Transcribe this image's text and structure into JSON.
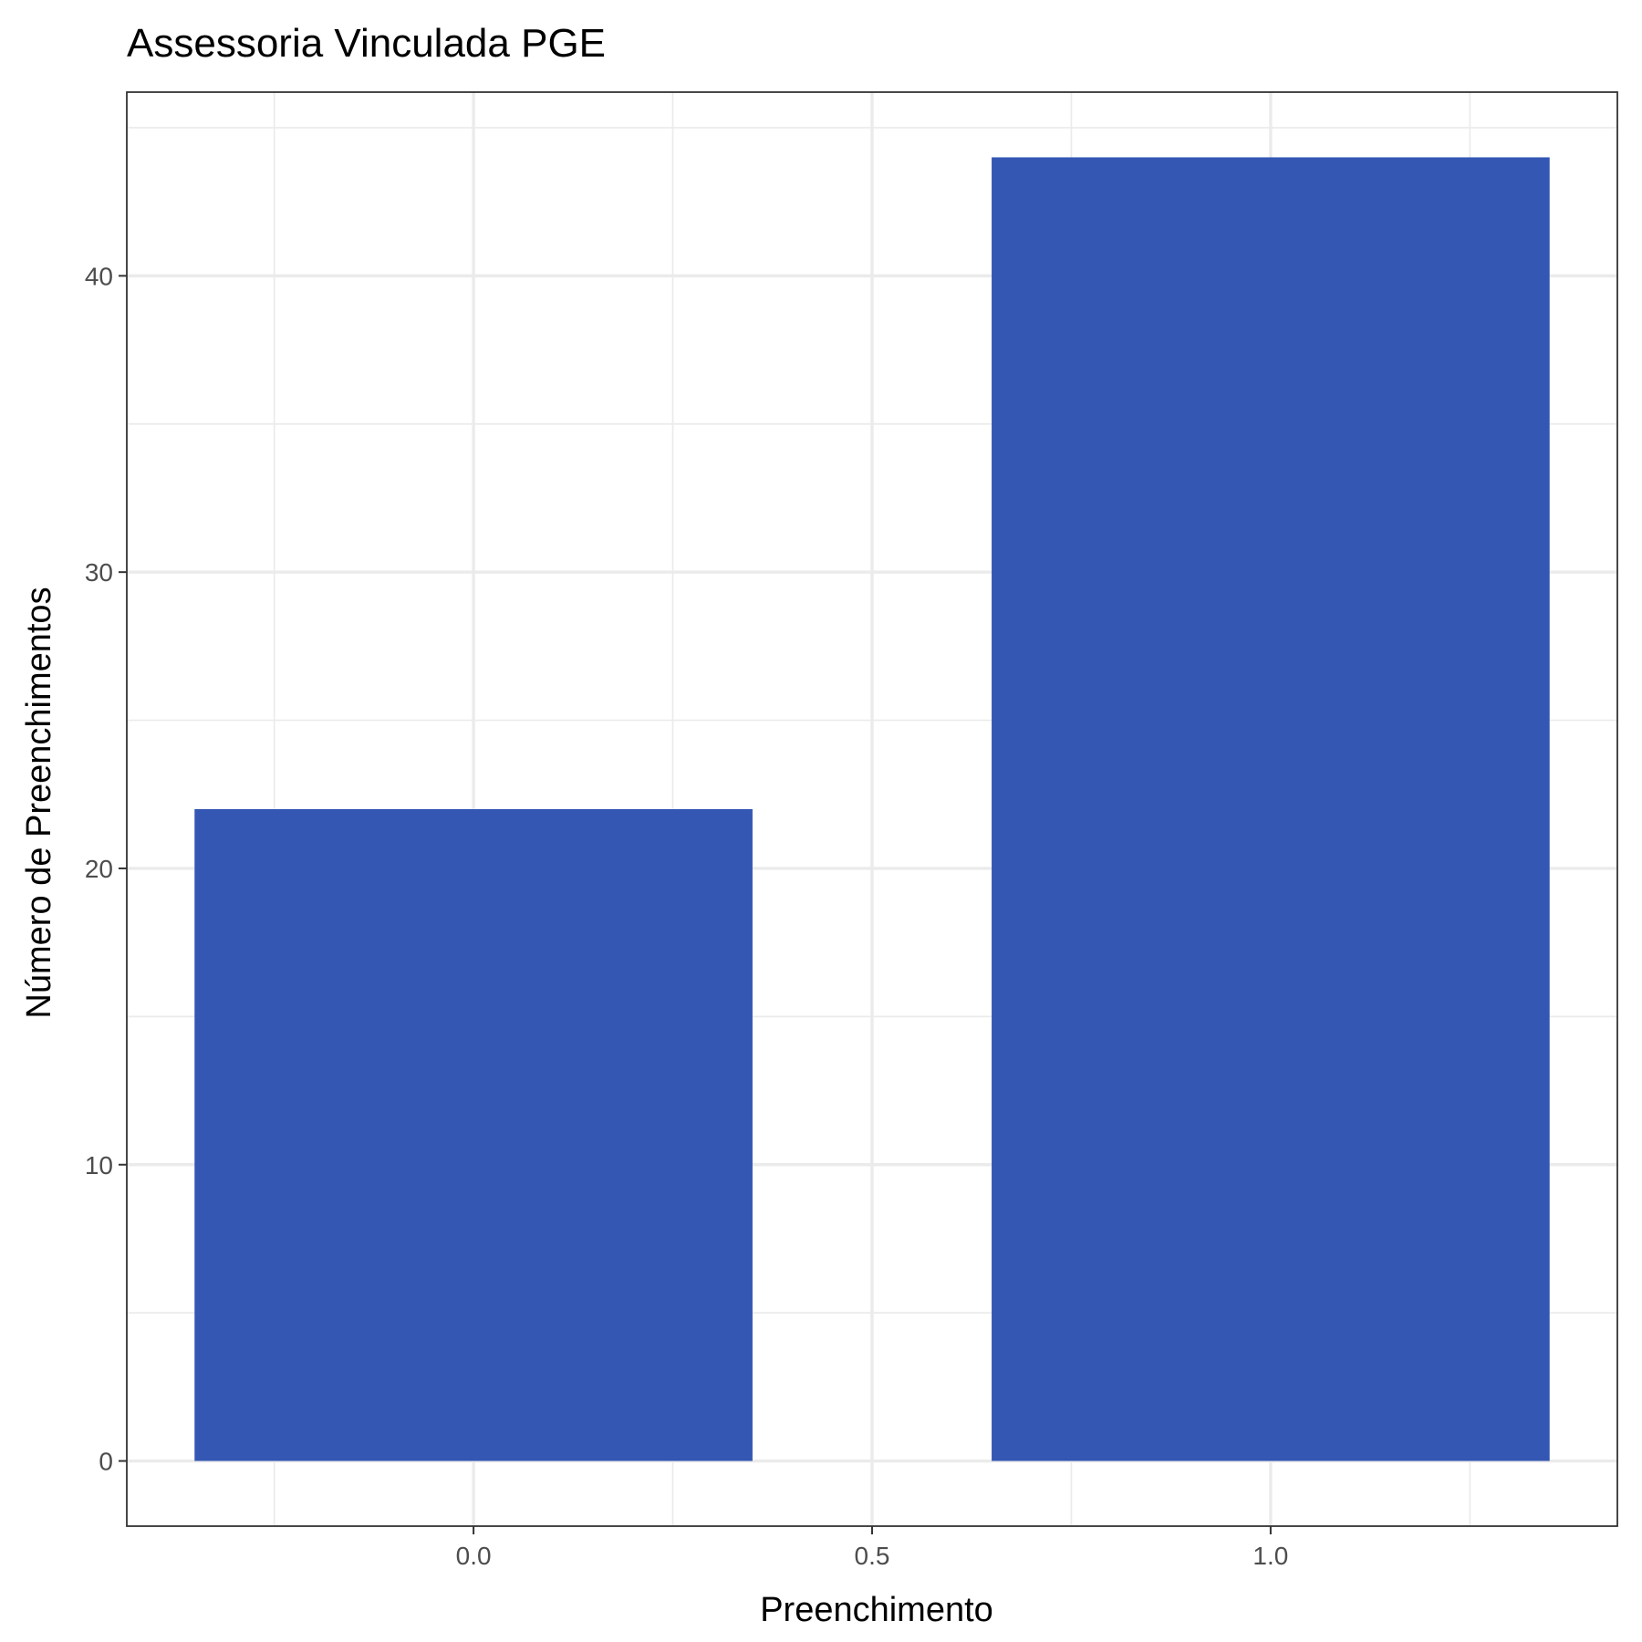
{
  "chart_data": {
    "type": "bar",
    "title": "Assessoria Vinculada PGE",
    "xlabel": "Preenchimento",
    "ylabel": "Número de Preenchimentos",
    "x": [
      0,
      1
    ],
    "values": [
      22,
      44
    ],
    "bar_width": 0.7,
    "xlim": [
      -0.435,
      1.435
    ],
    "ylim": [
      -2.2,
      46.2
    ],
    "x_ticks": [
      0.0,
      0.5,
      1.0
    ],
    "x_tick_labels": [
      "0.0",
      "0.5",
      "1.0"
    ],
    "y_ticks": [
      0,
      10,
      20,
      30,
      40
    ],
    "y_tick_labels": [
      "0",
      "10",
      "20",
      "30",
      "40"
    ],
    "grid": true,
    "bar_color": "#3457b4"
  }
}
